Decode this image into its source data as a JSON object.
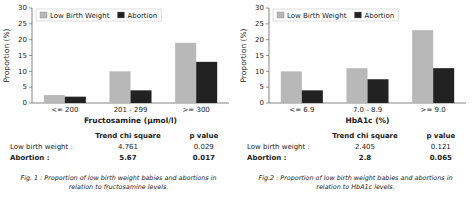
{
  "chart_data": [
    {
      "type": "bar",
      "title": "Fig. 1 : Proportion of low birth weight babies and abortions in\nrelation to fructosamine levels.",
      "x_label": "Fructosamine (μmol/l)",
      "y_label": "Proportion (%)",
      "categories": [
        "<= 200",
        "201 - 299",
        ">= 300"
      ],
      "series": [
        {
          "name": "Low Birth Weight",
          "color": "#b8b8b8",
          "values": [
            2.5,
            10.0,
            19.0
          ]
        },
        {
          "name": "Abortion",
          "color": "#222222",
          "values": [
            2.0,
            4.0,
            13.0
          ]
        }
      ],
      "ylim": [
        0,
        30
      ],
      "yticks": [
        0,
        5,
        10,
        15,
        20,
        25,
        30
      ],
      "grid": false,
      "legend": "upper left",
      "annotations": [
        [
          "Trend chi square",
          "p value"
        ],
        [
          "Low birth weight :",
          "4.761",
          "0.029"
        ],
        [
          "Abortion :",
          "5.67",
          "0.017"
        ]
      ]
    },
    {
      "type": "bar",
      "title": "Fig.2 : Proportion of low birth weight babies and abortions in\nrelation to HbA1c levels.",
      "x_label": "HbA1c (%)",
      "y_label": "Proportion (%)",
      "categories": [
        "<= 6.9",
        "7.0 - 8.9",
        ">= 9.0"
      ],
      "series": [
        {
          "name": "Low Birth Weight",
          "color": "#b8b8b8",
          "values": [
            10.0,
            11.0,
            23.0
          ]
        },
        {
          "name": "Abortion",
          "color": "#222222",
          "values": [
            4.0,
            7.5,
            11.0
          ]
        }
      ],
      "ylim": [
        0,
        30
      ],
      "yticks": [
        0,
        5,
        10,
        15,
        20,
        25,
        30
      ],
      "grid": false,
      "legend": "upper left",
      "annotations": [
        [
          "Trend chi square",
          "p value"
        ],
        [
          "Low birth weight :",
          "2.405",
          "0.121"
        ],
        [
          "Abortion :",
          "2.8",
          "0.065"
        ]
      ]
    }
  ]
}
